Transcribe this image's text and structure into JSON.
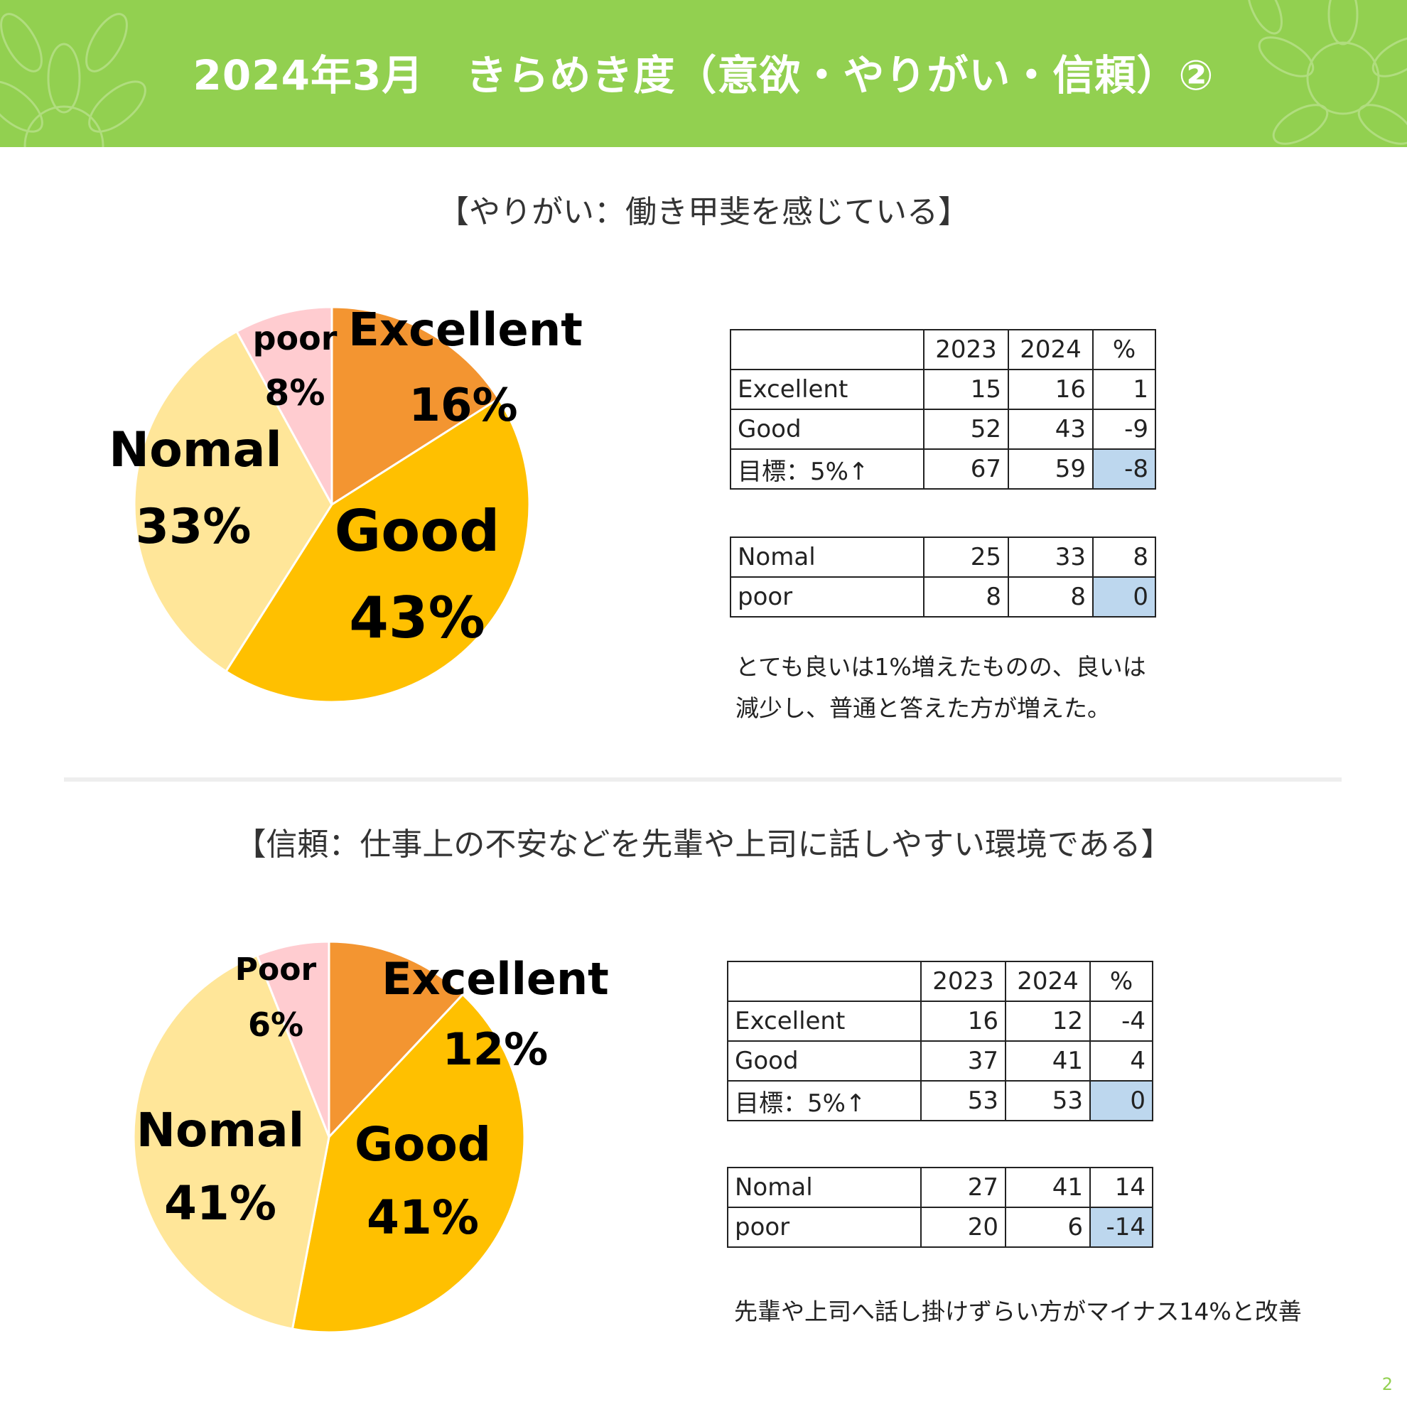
{
  "header": {
    "title": "2024年3月　きらめき度（意欲・やりがい・信頼）②"
  },
  "sections": [
    {
      "title": "【やりがい：働き甲斐を感じている】",
      "table_main": {
        "columns": [
          "",
          "2023",
          "2024",
          "%"
        ],
        "rows": [
          [
            "Excellent",
            "15",
            "16",
            "1"
          ],
          [
            "Good",
            "52",
            "43",
            "-9"
          ],
          [
            "目標：5%↑",
            "67",
            "59",
            "-8"
          ]
        ]
      },
      "table_sub": {
        "rows": [
          [
            "Nomal",
            "25",
            "33",
            "8"
          ],
          [
            "poor",
            "8",
            "8",
            "0"
          ]
        ]
      },
      "note": [
        "とても良いは1%増えたものの、良いは",
        "減少し、普通と答えた方が増えた。"
      ]
    },
    {
      "title": "【信頼：仕事上の不安などを先輩や上司に話しやすい環境である】",
      "table_main": {
        "columns": [
          "",
          "2023",
          "2024",
          "%"
        ],
        "rows": [
          [
            "Excellent",
            "16",
            "12",
            "-4"
          ],
          [
            "Good",
            "37",
            "41",
            "4"
          ],
          [
            "目標：5%↑",
            "53",
            "53",
            "0"
          ]
        ]
      },
      "table_sub": {
        "rows": [
          [
            "Nomal",
            "27",
            "41",
            "14"
          ],
          [
            "poor",
            "20",
            "6",
            "-14"
          ]
        ]
      },
      "note": [
        "先輩や上司へ話し掛けずらい方がマイナス14%と改善"
      ]
    }
  ],
  "chart_data": [
    {
      "type": "pie",
      "categories": [
        "Excellent",
        "Good",
        "Nomal",
        "poor"
      ],
      "values": [
        16,
        43,
        33,
        8
      ],
      "labels": [
        "16%",
        "43%",
        "33%",
        "8%"
      ],
      "colors": [
        "#f39531",
        "#ffc000",
        "#ffe699",
        "#ffccd0"
      ]
    },
    {
      "type": "pie",
      "categories": [
        "Excellent",
        "Good",
        "Nomal",
        "Poor"
      ],
      "values": [
        12,
        41,
        41,
        6
      ],
      "labels": [
        "12%",
        "41%",
        "41%",
        "6%"
      ],
      "colors": [
        "#f39531",
        "#ffc000",
        "#ffe699",
        "#ffccd0"
      ]
    }
  ],
  "page_number": "2"
}
